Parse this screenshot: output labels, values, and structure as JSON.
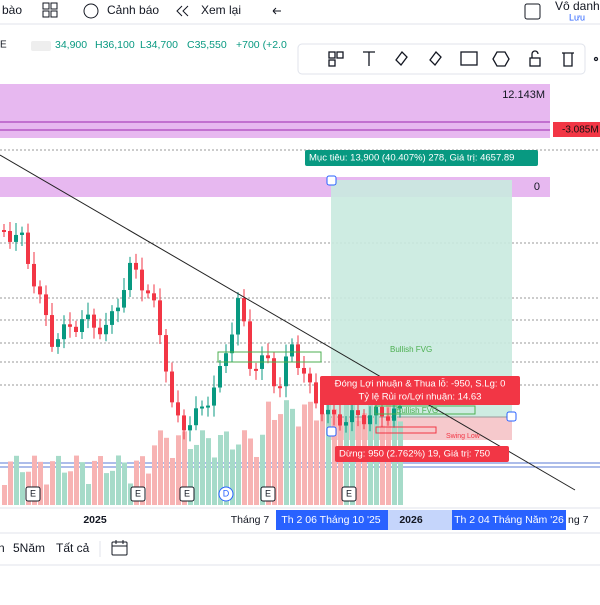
{
  "toolbar": {
    "items": [
      "bào",
      "Cảnh báo",
      "Xem lại"
    ],
    "user": "Vô danh",
    "save": "Lưu"
  },
  "ohlc": {
    "open": "34,900",
    "high": "H36,100",
    "low": "L34,700",
    "close": "C35,550",
    "change": "+700 (+2.0"
  },
  "labels": {
    "volume_top": "12.143M",
    "volume_marker": "-3.085M",
    "zero": "0"
  },
  "position": {
    "target": "Mục tiêu: 13,900 (40.407%) 278, Giá trị: 4657.89",
    "close_pnl": "Đóng Lợi nhuận & Thua lỗ: -950, S.Lg: 0",
    "ratio": "Tỷ lệ Rủi ro/Lợi nhuận: 14.63",
    "stop": "Dừng: 950 (2.762%) 19, Giá trị: 750"
  },
  "annotations": [
    "Bullish FVG",
    "Bullish FVG",
    "Swing Low"
  ],
  "events": [
    "E",
    "E",
    "E",
    "D",
    "E",
    "E"
  ],
  "x_axis": [
    "2025",
    "Tháng 7",
    "Th 2 06 Tháng 10 '25",
    "2026",
    "Th 2 04 Tháng Năm '26",
    "ng 7"
  ],
  "ranges": [
    "n",
    "5Năm",
    "Tất cả"
  ]
}
